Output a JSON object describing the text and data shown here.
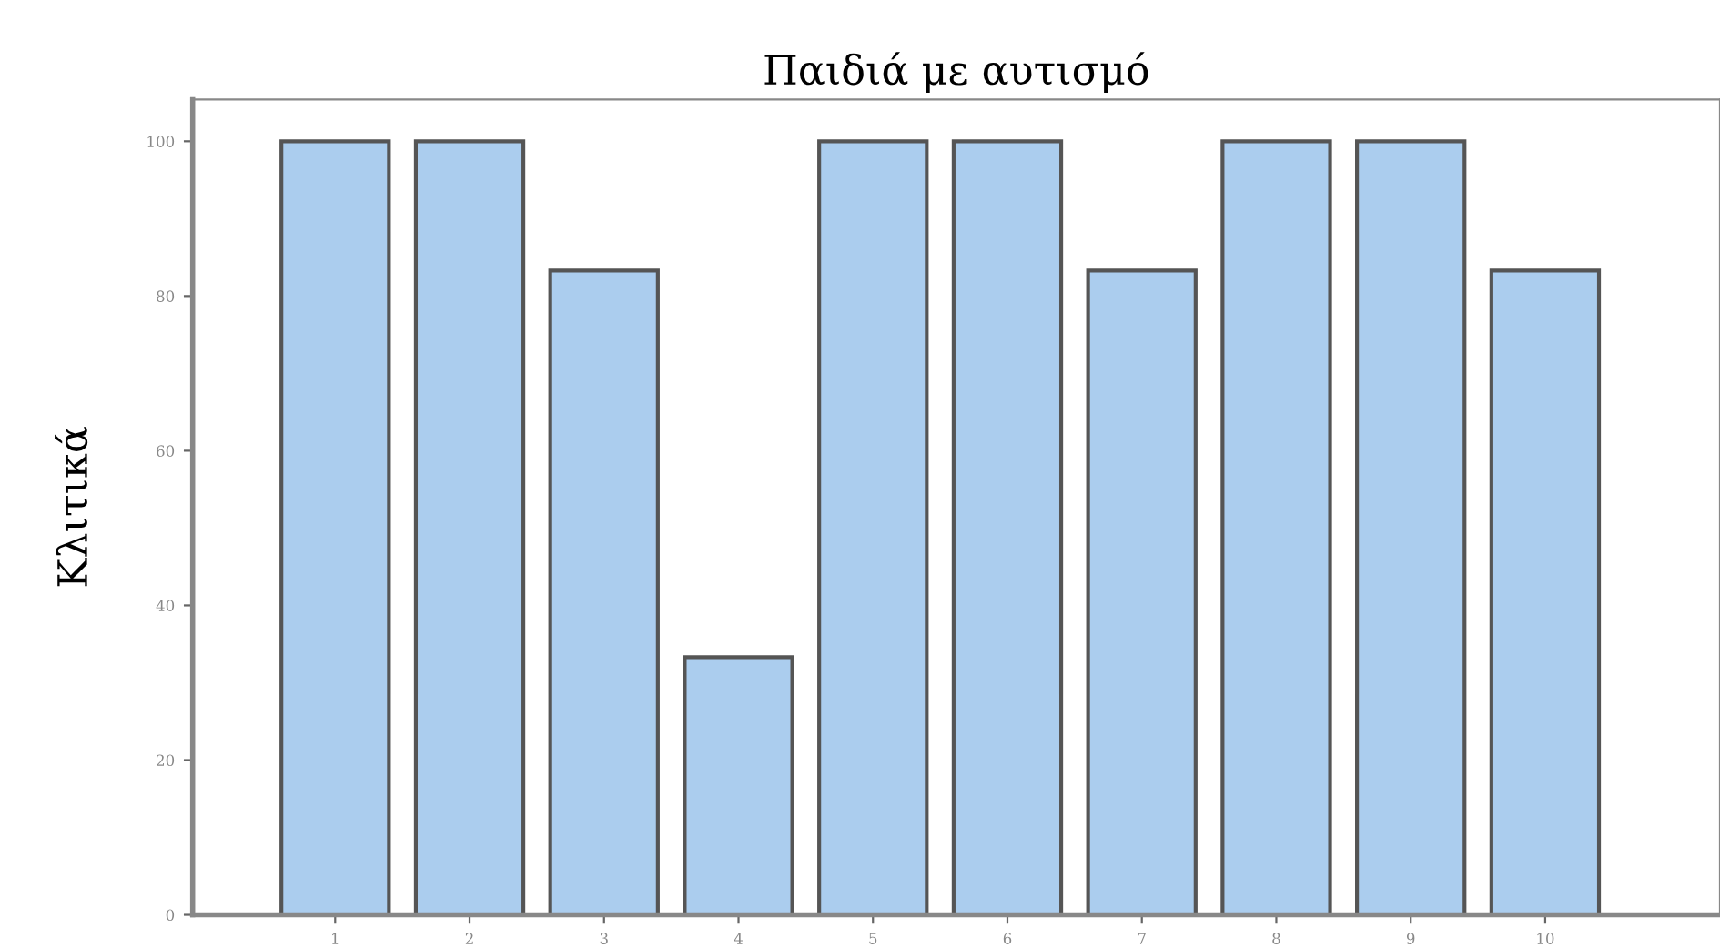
{
  "chart_data": {
    "type": "bar",
    "title": "Παιδιά με αυτισμό",
    "ylabel": "Κλιτικά",
    "categories": [
      "1",
      "2",
      "3",
      "4",
      "5",
      "6",
      "7",
      "8",
      "9",
      "10"
    ],
    "values": [
      100,
      100,
      83.3,
      33.3,
      100,
      100,
      83.3,
      100,
      100,
      83.3
    ],
    "color": "#abcdee",
    "ylim": [
      0,
      105.4
    ],
    "yticks": [
      0,
      20,
      40,
      60,
      80,
      100
    ],
    "grid": false,
    "legend": false
  }
}
